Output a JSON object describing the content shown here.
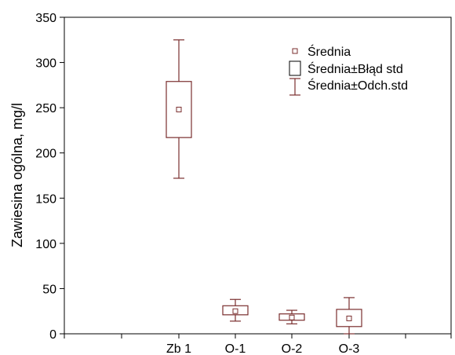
{
  "chart_data": {
    "type": "box",
    "title": "",
    "xlabel": "",
    "ylabel": "Zawiesina ogólna, mg/l",
    "ylim": [
      0,
      350
    ],
    "yticks": [
      0,
      50,
      100,
      150,
      200,
      250,
      300,
      350
    ],
    "categories": [
      "Zb 1",
      "O-1",
      "O-2",
      "O-3"
    ],
    "series": [
      {
        "category": "Zb 1",
        "mean": 248,
        "se_low": 217,
        "se_high": 279,
        "sd_low": 172,
        "sd_high": 325
      },
      {
        "category": "O-1",
        "mean": 25,
        "se_low": 21,
        "se_high": 31,
        "sd_low": 14,
        "sd_high": 38
      },
      {
        "category": "O-2",
        "mean": 18,
        "se_low": 15,
        "se_high": 22,
        "sd_low": 11,
        "sd_high": 26
      },
      {
        "category": "O-3",
        "mean": 17,
        "se_low": 8,
        "se_high": 27,
        "sd_low": 0,
        "sd_high": 40
      }
    ],
    "legend": {
      "position": "top-right",
      "entries": [
        "Średnia",
        "Średnia±Błąd std",
        "Średnia±Odch.std"
      ]
    },
    "grid": false,
    "colors": {
      "mean": "#7a2e2e",
      "box": "#7a2e2e",
      "whisker": "#7a2e2e",
      "axis": "#000000"
    }
  }
}
